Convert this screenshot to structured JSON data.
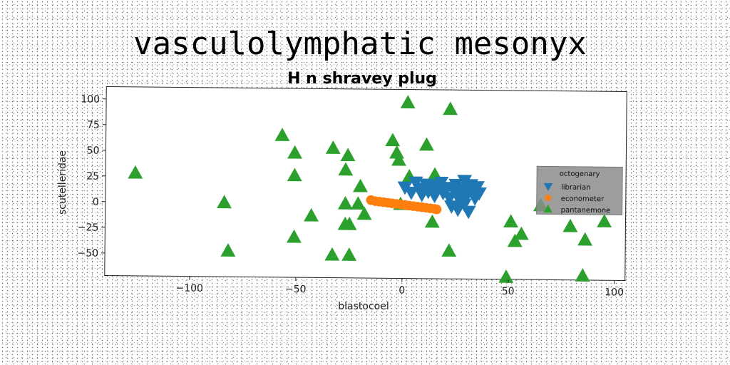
{
  "chart_data": {
    "type": "scatter",
    "suptitle": "vasculolymphatic mesonyx",
    "title": "H n shravey plug",
    "xlabel": "blastocoel",
    "ylabel": "scutelleridae",
    "xlim": [
      -140,
      105
    ],
    "ylim": [
      -72,
      112
    ],
    "xticks": [
      -100,
      -50,
      0,
      50,
      100
    ],
    "yticks": [
      -50,
      -25,
      0,
      25,
      50,
      75,
      100
    ],
    "xtick_labels": [
      "−100",
      "−50",
      "0",
      "50",
      "100"
    ],
    "ytick_labels": [
      "−50",
      "−25",
      "0",
      "25",
      "50",
      "75",
      "100"
    ],
    "grid": false,
    "legend": {
      "title": "octogenary",
      "placement": "center-right"
    },
    "series": [
      {
        "name": "librarian",
        "marker": "triangle-down",
        "color": "#1f77b4",
        "points": [
          [
            1,
            17
          ],
          [
            4,
            12
          ],
          [
            6,
            22
          ],
          [
            8,
            16
          ],
          [
            9,
            10
          ],
          [
            11,
            20
          ],
          [
            12,
            13
          ],
          [
            14,
            19
          ],
          [
            15,
            9
          ],
          [
            16,
            15
          ],
          [
            18,
            22
          ],
          [
            19,
            12
          ],
          [
            21,
            17
          ],
          [
            22,
            7
          ],
          [
            24,
            14
          ],
          [
            25,
            20
          ],
          [
            26,
            11
          ],
          [
            27,
            4
          ],
          [
            28,
            16
          ],
          [
            29,
            24
          ],
          [
            30,
            9
          ],
          [
            31,
            15
          ],
          [
            32,
            20
          ],
          [
            33,
            13
          ],
          [
            34,
            7
          ],
          [
            35,
            18
          ],
          [
            36,
            12
          ],
          [
            23,
            -1
          ],
          [
            26,
            -4
          ],
          [
            29,
            1
          ],
          [
            31,
            -6
          ]
        ]
      },
      {
        "name": "econometer",
        "marker": "circle",
        "color": "#ff7f0e",
        "points": [
          [
            -15,
            4
          ],
          [
            -13,
            3
          ],
          [
            -11,
            2.5
          ],
          [
            -9,
            2
          ],
          [
            -7,
            1.5
          ],
          [
            -5,
            1
          ],
          [
            -3,
            0.5
          ],
          [
            -1,
            0
          ],
          [
            1,
            -0.5
          ],
          [
            3,
            -1
          ],
          [
            5,
            -1.5
          ],
          [
            7,
            -2
          ],
          [
            9,
            -2.5
          ],
          [
            11,
            -3
          ],
          [
            13,
            -3.5
          ],
          [
            15,
            -4
          ],
          [
            16,
            -4.5
          ]
        ]
      },
      {
        "name": "pantanemone",
        "marker": "triangle-up",
        "color": "#2ca02c",
        "points": [
          [
            -126,
            28
          ],
          [
            -84,
            0
          ],
          [
            -82,
            -47
          ],
          [
            -57,
            66
          ],
          [
            -51,
            49
          ],
          [
            -51,
            27
          ],
          [
            -51,
            -33
          ],
          [
            -43,
            -12
          ],
          [
            -33,
            54
          ],
          [
            -33,
            -50
          ],
          [
            -27,
            0
          ],
          [
            -27,
            -20
          ],
          [
            -27,
            33
          ],
          [
            -26,
            47
          ],
          [
            -25,
            -50
          ],
          [
            -25,
            -20
          ],
          [
            -21,
            0
          ],
          [
            -20,
            17
          ],
          [
            -18,
            -10
          ],
          [
            -5,
            62
          ],
          [
            -3,
            50
          ],
          [
            -2,
            43
          ],
          [
            -1,
            0
          ],
          [
            2,
            99
          ],
          [
            3,
            27
          ],
          [
            11,
            58
          ],
          [
            14,
            -17
          ],
          [
            15,
            29
          ],
          [
            22,
            93
          ],
          [
            22,
            -45
          ],
          [
            51,
            -16
          ],
          [
            53,
            -35
          ],
          [
            56,
            -28
          ],
          [
            49,
            -70
          ],
          [
            85,
            -68
          ],
          [
            79,
            -20
          ],
          [
            86,
            -33
          ],
          [
            95,
            -15
          ],
          [
            65,
            0
          ]
        ]
      }
    ]
  }
}
